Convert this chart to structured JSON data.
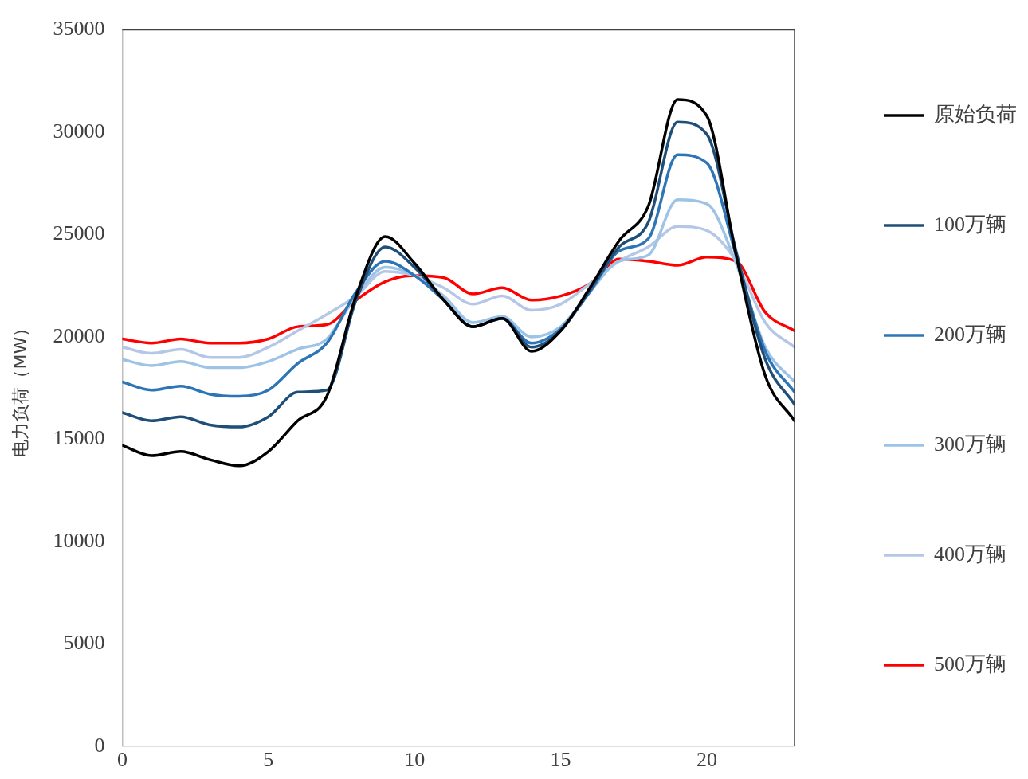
{
  "chart_data": {
    "type": "line",
    "ylabel": "电力负荷（MW）",
    "x": [
      0,
      1,
      2,
      3,
      4,
      5,
      6,
      7,
      8,
      9,
      10,
      11,
      12,
      13,
      14,
      15,
      16,
      17,
      18,
      19,
      20,
      21,
      22,
      23
    ],
    "xlim": [
      0,
      23
    ],
    "xticks": [
      0,
      5,
      10,
      15,
      20
    ],
    "ylim": [
      0,
      35000
    ],
    "yticks": [
      0,
      5000,
      10000,
      15000,
      20000,
      25000,
      30000,
      35000
    ],
    "grid": false,
    "legend": "right",
    "marker": "none",
    "line_style": "solid",
    "series": [
      {
        "name": "原始负荷",
        "color": "#000000",
        "values": [
          14700,
          14200,
          14400,
          14000,
          13700,
          14400,
          15900,
          17100,
          22000,
          24900,
          23600,
          21800,
          20500,
          20900,
          19300,
          20300,
          22400,
          24700,
          26400,
          31600,
          30800,
          24000,
          18100,
          15900
        ]
      },
      {
        "name": "100万辆",
        "color": "#1f4e79",
        "values": [
          16300,
          15900,
          16100,
          15700,
          15600,
          16100,
          17300,
          17400,
          21800,
          24400,
          23400,
          21800,
          20500,
          20900,
          19500,
          20300,
          22300,
          24400,
          25600,
          30500,
          29900,
          24200,
          18900,
          16700
        ]
      },
      {
        "name": "200万辆",
        "color": "#2e75b6",
        "values": [
          17800,
          17400,
          17600,
          17200,
          17100,
          17400,
          18700,
          19700,
          22200,
          23700,
          23000,
          21800,
          20500,
          20900,
          19700,
          20400,
          22200,
          24200,
          24800,
          28900,
          28500,
          24000,
          19300,
          17300
        ]
      },
      {
        "name": "300万辆",
        "color": "#9dc3e6",
        "values": [
          18900,
          18600,
          18800,
          18500,
          18500,
          18800,
          19400,
          19900,
          22000,
          23400,
          23000,
          22000,
          20700,
          21000,
          20000,
          20500,
          22200,
          23700,
          24000,
          26700,
          26500,
          23600,
          19500,
          17800
        ]
      },
      {
        "name": "400万辆",
        "color": "#b4c7e7",
        "values": [
          19500,
          19200,
          19400,
          19000,
          19000,
          19500,
          20300,
          21100,
          22000,
          23200,
          23000,
          22400,
          21600,
          22000,
          21300,
          21600,
          22600,
          23700,
          24400,
          25400,
          25200,
          23700,
          20700,
          19500
        ]
      },
      {
        "name": "500万辆",
        "color": "#ff0000",
        "values": [
          19900,
          19700,
          19900,
          19700,
          19700,
          19900,
          20500,
          20600,
          21800,
          22700,
          23000,
          22900,
          22100,
          22400,
          21800,
          22000,
          22600,
          23800,
          23700,
          23500,
          23900,
          23700,
          21200,
          20300
        ]
      }
    ]
  }
}
